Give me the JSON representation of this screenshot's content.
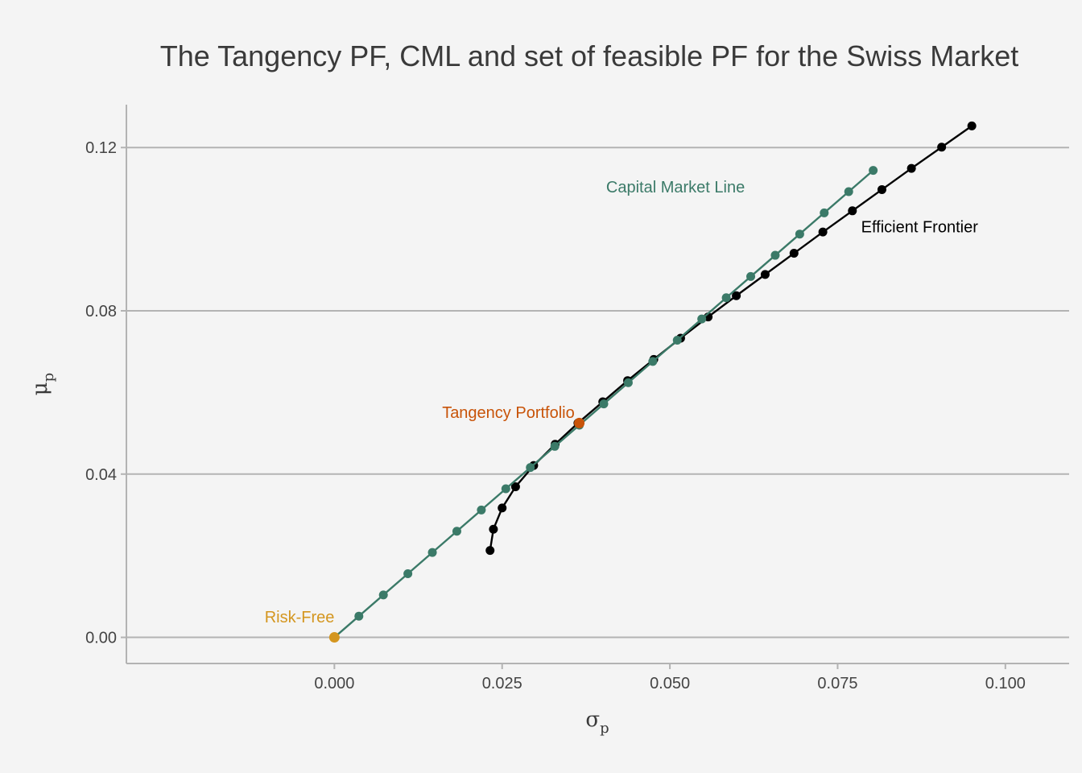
{
  "chart_data": {
    "type": "line",
    "title": "The Tangency PF, CML and set of feasible PF for the Swiss Market",
    "xlabel": {
      "symbol": "σ",
      "subscript": "p"
    },
    "ylabel": {
      "symbol": "μ",
      "subscript": "p"
    },
    "xlim": [
      -0.031,
      0.1095
    ],
    "ylim": [
      -0.0064,
      0.1305
    ],
    "x_ticks": [
      0.0,
      0.025,
      0.05,
      0.075,
      0.1
    ],
    "x_tick_labels": [
      "0.000",
      "0.025",
      "0.050",
      "0.075",
      "0.100"
    ],
    "y_ticks": [
      0.0,
      0.04,
      0.08,
      0.12
    ],
    "y_tick_labels": [
      "0.00",
      "0.04",
      "0.08",
      "0.12"
    ],
    "grid": {
      "horizontal": true,
      "vertical": false
    },
    "colors": {
      "background": "#f4f4f4",
      "grid": "#b3b3b3",
      "axis": "#b3b3b3",
      "efficient_frontier": "#000000",
      "cml": "#3b7a68",
      "tangency": "#c85308",
      "risk_free": "#d4961f"
    },
    "series": [
      {
        "name": "Efficient Frontier",
        "color": "#000000",
        "points": [
          [
            0.0232,
            0.0213
          ],
          [
            0.0237,
            0.0265
          ],
          [
            0.025,
            0.0317
          ],
          [
            0.027,
            0.0369
          ],
          [
            0.0297,
            0.0421
          ],
          [
            0.0329,
            0.0473
          ],
          [
            0.0363,
            0.0525
          ],
          [
            0.04,
            0.0577
          ],
          [
            0.0437,
            0.0629
          ],
          [
            0.0476,
            0.0681
          ],
          [
            0.0516,
            0.0733
          ],
          [
            0.0557,
            0.0785
          ],
          [
            0.0599,
            0.0837
          ],
          [
            0.0642,
            0.0889
          ],
          [
            0.0685,
            0.0941
          ],
          [
            0.0728,
            0.0993
          ],
          [
            0.0772,
            0.1045
          ],
          [
            0.0816,
            0.1097
          ],
          [
            0.086,
            0.1149
          ],
          [
            0.0905,
            0.1201
          ],
          [
            0.095,
            0.1253
          ]
        ]
      },
      {
        "name": "Capital Market Line",
        "color": "#3b7a68",
        "points": [
          [
            0.0,
            0.0
          ],
          [
            0.00365,
            0.0052
          ],
          [
            0.0073,
            0.0104
          ],
          [
            0.01095,
            0.0156
          ],
          [
            0.0146,
            0.0208
          ],
          [
            0.01825,
            0.026
          ],
          [
            0.0219,
            0.0312
          ],
          [
            0.02555,
            0.0364
          ],
          [
            0.0292,
            0.0416
          ],
          [
            0.03285,
            0.0468
          ],
          [
            0.0365,
            0.052
          ],
          [
            0.04015,
            0.0572
          ],
          [
            0.0438,
            0.0624
          ],
          [
            0.04745,
            0.0676
          ],
          [
            0.0511,
            0.0728
          ],
          [
            0.05475,
            0.078
          ],
          [
            0.0584,
            0.0832
          ],
          [
            0.06205,
            0.0884
          ],
          [
            0.0657,
            0.0936
          ],
          [
            0.06935,
            0.0988
          ],
          [
            0.073,
            0.104
          ],
          [
            0.07665,
            0.1092
          ],
          [
            0.0803,
            0.1144
          ]
        ]
      }
    ],
    "highlights": [
      {
        "name": "Tangency Portfolio",
        "x": 0.0365,
        "y": 0.0525,
        "color": "#c85308"
      },
      {
        "name": "Risk-Free",
        "x": 0.0,
        "y": 0.0,
        "color": "#d4961f"
      }
    ],
    "annotations": [
      {
        "text": "Capital Market Line",
        "x": 0.0405,
        "y": 0.109,
        "color": "#3b7a68",
        "anchor": "start"
      },
      {
        "text": "Efficient Frontier",
        "x": 0.0785,
        "y": 0.0992,
        "color": "#000000",
        "anchor": "start"
      },
      {
        "text": "Tangency Portfolio",
        "x": 0.0358,
        "y": 0.0538,
        "color": "#c85308",
        "anchor": "end"
      },
      {
        "text": "Risk-Free",
        "x": 0.0,
        "y": 0.0037,
        "color": "#d4961f",
        "anchor": "end"
      }
    ]
  }
}
